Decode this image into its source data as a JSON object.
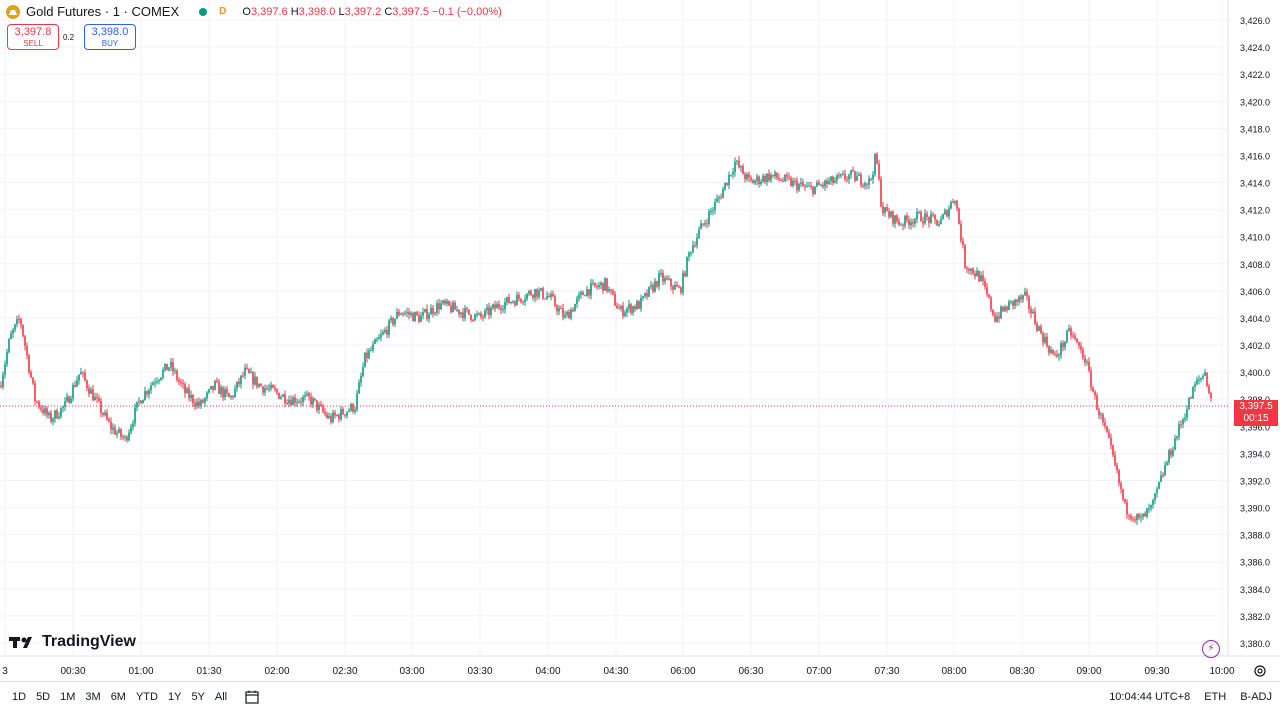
{
  "header": {
    "symbol": "Gold Futures · 1 · COMEX",
    "badge": "D",
    "o_label": "O",
    "o": "3,397.6",
    "h_label": "H",
    "h": "3,398.0",
    "l_label": "L",
    "l": "3,397.2",
    "c_label": "C",
    "c": "3,397.5",
    "change": "−0.1 (−0.00%)"
  },
  "trade": {
    "sell_price": "3,397.8",
    "sell_label": "SELL",
    "spread": "0.2",
    "buy_price": "3,398.0",
    "buy_label": "BUY"
  },
  "price_badge": {
    "price": "3,397.5",
    "countdown": "00:15"
  },
  "logo": "TradingView",
  "bottom": {
    "ranges": [
      "1D",
      "5D",
      "1M",
      "3M",
      "6M",
      "YTD",
      "1Y",
      "5Y",
      "All"
    ],
    "time": "10:04:44 UTC+8",
    "session": "ETH",
    "adj": "B-ADJ"
  },
  "colors": {
    "up": "#089981",
    "down": "#f23645",
    "grid": "#f0f3fa",
    "price_line": "#f23645"
  },
  "chart_data": {
    "type": "candlestick",
    "ylim": [
      3379.0,
      3427.0
    ],
    "yticks": [
      "3,380.0",
      "3,382.0",
      "3,384.0",
      "3,386.0",
      "3,388.0",
      "3,390.0",
      "3,392.0",
      "3,394.0",
      "3,396.0",
      "3,398.0",
      "3,400.0",
      "3,402.0",
      "3,404.0",
      "3,406.0",
      "3,408.0",
      "3,410.0",
      "3,412.0",
      "3,414.0",
      "3,416.0",
      "3,418.0",
      "3,420.0",
      "3,422.0",
      "3,424.0",
      "3,426.0"
    ],
    "xticks": [
      "3",
      "00:30",
      "01:00",
      "01:30",
      "02:00",
      "02:30",
      "03:00",
      "03:30",
      "04:00",
      "04:30",
      "06:00",
      "06:30",
      "07:00",
      "07:30",
      "08:00",
      "08:30",
      "09:00",
      "09:30",
      "10:00"
    ],
    "last_price": 3397.5,
    "bar_count": 600,
    "path": [
      [
        0,
        3399.0
      ],
      [
        10,
        3402.5
      ],
      [
        20,
        3404.0
      ],
      [
        35,
        3398.0
      ],
      [
        50,
        3396.5
      ],
      [
        65,
        3397.5
      ],
      [
        80,
        3400.0
      ],
      [
        95,
        3398.0
      ],
      [
        110,
        3396.0
      ],
      [
        125,
        3395.0
      ],
      [
        140,
        3398.0
      ],
      [
        155,
        3399.5
      ],
      [
        170,
        3400.5
      ],
      [
        185,
        3398.5
      ],
      [
        200,
        3397.5
      ],
      [
        215,
        3399.0
      ],
      [
        230,
        3398.0
      ],
      [
        245,
        3400.0
      ],
      [
        260,
        3399.0
      ],
      [
        275,
        3398.5
      ],
      [
        290,
        3398.0
      ],
      [
        310,
        3398.0
      ],
      [
        330,
        3396.5
      ],
      [
        355,
        3397.5
      ],
      [
        365,
        3401.0
      ],
      [
        380,
        3402.5
      ],
      [
        400,
        3404.5
      ],
      [
        420,
        3404.0
      ],
      [
        440,
        3405.0
      ],
      [
        460,
        3404.5
      ],
      [
        480,
        3404.0
      ],
      [
        500,
        3405.0
      ],
      [
        520,
        3405.5
      ],
      [
        535,
        3406.0
      ],
      [
        550,
        3405.5
      ],
      [
        565,
        3404.0
      ],
      [
        585,
        3406.0
      ],
      [
        605,
        3406.5
      ],
      [
        620,
        3404.5
      ],
      [
        640,
        3405.0
      ],
      [
        660,
        3407.0
      ],
      [
        680,
        3406.0
      ],
      [
        690,
        3409.0
      ],
      [
        700,
        3410.5
      ],
      [
        720,
        3413.0
      ],
      [
        735,
        3415.5
      ],
      [
        750,
        3414.0
      ],
      [
        770,
        3414.5
      ],
      [
        790,
        3414.0
      ],
      [
        810,
        3413.5
      ],
      [
        830,
        3414.0
      ],
      [
        850,
        3414.5
      ],
      [
        870,
        3414.0
      ],
      [
        876,
        3416.0
      ],
      [
        882,
        3412.0
      ],
      [
        900,
        3411.0
      ],
      [
        920,
        3411.5
      ],
      [
        940,
        3411.0
      ],
      [
        955,
        3413.0
      ],
      [
        965,
        3408.0
      ],
      [
        980,
        3407.0
      ],
      [
        995,
        3404.0
      ],
      [
        1010,
        3405.0
      ],
      [
        1025,
        3405.5
      ],
      [
        1040,
        3403.0
      ],
      [
        1055,
        3401.0
      ],
      [
        1070,
        3403.0
      ],
      [
        1085,
        3401.0
      ],
      [
        1095,
        3398.0
      ],
      [
        1110,
        3394.5
      ],
      [
        1125,
        3390.0
      ],
      [
        1140,
        3389.0
      ],
      [
        1152,
        3390.0
      ],
      [
        1165,
        3393.0
      ],
      [
        1180,
        3396.0
      ],
      [
        1195,
        3399.0
      ],
      [
        1205,
        3400.0
      ],
      [
        1212,
        3397.5
      ]
    ]
  }
}
